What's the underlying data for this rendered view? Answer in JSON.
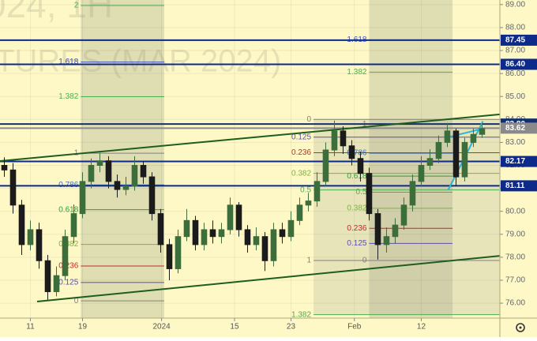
{
  "chart_data": {
    "type": "candlestick",
    "watermark": [
      "024, 1H",
      "TURES (MAR 2024)"
    ],
    "background": "#fdf8c6",
    "grid": true,
    "xlim": [
      -0.5,
      57.05
    ],
    "ylim": [
      75.35,
      89.2
    ],
    "xticks": [
      {
        "value": 3.0,
        "label": "11"
      },
      {
        "value": 9.0,
        "label": "19"
      },
      {
        "value": 18.1,
        "label": "2024"
      },
      {
        "value": 26.5,
        "label": "15"
      },
      {
        "value": 33.0,
        "label": "23"
      },
      {
        "value": 40.3,
        "label": "Feb"
      },
      {
        "value": 48.0,
        "label": "12"
      }
    ],
    "yticks": [
      {
        "value": 76,
        "label": "76.00"
      },
      {
        "value": 77,
        "label": "77.00"
      },
      {
        "value": 78,
        "label": "78.00"
      },
      {
        "value": 79,
        "label": "79.00"
      },
      {
        "value": 80,
        "label": "80.00"
      },
      {
        "value": 81,
        "label": "81.00"
      },
      {
        "value": 82,
        "label": "82.00"
      },
      {
        "value": 83,
        "label": "83.00"
      },
      {
        "value": 84,
        "label": "84.00"
      },
      {
        "value": 85,
        "label": "85.00"
      },
      {
        "value": 86,
        "label": "86.00"
      },
      {
        "value": 87,
        "label": "87.00"
      },
      {
        "value": 88,
        "label": "88.00"
      },
      {
        "value": 89,
        "label": "89.00"
      }
    ],
    "up_color": "#3c6e3c",
    "down_color": "#1b1b1b",
    "x": [
      0,
      1,
      2,
      3,
      4,
      5,
      6,
      7,
      8,
      9,
      10,
      11,
      12,
      13,
      14,
      15,
      16,
      17,
      18,
      19,
      20,
      21,
      22,
      23,
      24,
      25,
      26,
      27,
      28,
      29,
      30,
      31,
      32,
      33,
      34,
      35,
      36,
      37,
      38,
      39,
      40,
      41,
      42,
      43,
      44,
      45,
      46,
      47,
      48,
      49,
      50,
      51,
      52,
      53,
      54,
      55
    ],
    "open": [
      82.0,
      81.8,
      80.27,
      78.55,
      79.2,
      77.85,
      76.5,
      77.2,
      78.9,
      79.9,
      81.3,
      82.0,
      82.2,
      81.3,
      80.95,
      81.1,
      82.0,
      81.5,
      79.9,
      78.55,
      77.5,
      78.9,
      79.6,
      78.55,
      79.2,
      78.9,
      79.2,
      80.27,
      79.2,
      78.55,
      78.9,
      77.85,
      79.2,
      78.9,
      79.6,
      80.27,
      80.45,
      81.3,
      82.67,
      83.5,
      82.85,
      82.3,
      81.65,
      79.9,
      78.55,
      78.9,
      79.4,
      80.27,
      81.3,
      82.0,
      82.3,
      83.0,
      83.5,
      81.5,
      83.0,
      83.35
    ],
    "high": [
      82.35,
      82.1,
      80.5,
      79.6,
      79.5,
      78.1,
      77.6,
      79.2,
      80.3,
      81.7,
      82.3,
      82.55,
      82.4,
      81.6,
      81.5,
      82.4,
      82.2,
      81.7,
      80.1,
      78.8,
      79.2,
      80.1,
      79.8,
      79.5,
      79.6,
      79.5,
      80.6,
      80.4,
      79.4,
      79.3,
      79.1,
      79.5,
      79.5,
      80.0,
      80.6,
      80.8,
      81.7,
      83.0,
      83.95,
      83.7,
      83.1,
      82.6,
      81.9,
      80.1,
      79.3,
      79.7,
      80.6,
      81.6,
      82.4,
      82.7,
      83.3,
      83.85,
      83.6,
      83.2,
      83.6,
      83.85
    ],
    "low": [
      81.5,
      79.9,
      78.1,
      78.3,
      77.5,
      76.15,
      76.3,
      77.0,
      78.6,
      79.7,
      81.0,
      81.7,
      81.0,
      80.6,
      80.7,
      80.9,
      81.2,
      79.6,
      78.2,
      77.0,
      77.3,
      78.7,
      78.3,
      78.3,
      78.6,
      78.6,
      79.0,
      78.9,
      78.2,
      78.3,
      77.4,
      77.6,
      78.6,
      78.7,
      79.4,
      80.0,
      80.2,
      81.1,
      82.4,
      82.5,
      82.0,
      81.3,
      79.6,
      77.9,
      78.2,
      78.6,
      79.2,
      80.0,
      81.1,
      81.8,
      82.1,
      82.8,
      81.1,
      81.3,
      82.8,
      83.2
    ],
    "close": [
      81.8,
      80.27,
      78.55,
      79.2,
      77.85,
      76.5,
      77.2,
      78.9,
      79.9,
      81.3,
      82.0,
      82.2,
      81.3,
      80.95,
      81.1,
      82.0,
      81.5,
      79.9,
      78.55,
      77.5,
      78.9,
      79.6,
      78.55,
      79.2,
      78.9,
      79.2,
      80.27,
      79.2,
      78.55,
      78.9,
      77.85,
      79.2,
      78.9,
      79.6,
      80.27,
      80.45,
      81.3,
      82.67,
      83.5,
      82.85,
      82.3,
      81.65,
      79.9,
      78.55,
      78.9,
      79.4,
      80.27,
      81.3,
      82.0,
      82.3,
      83.0,
      83.5,
      81.5,
      83.0,
      83.35,
      83.6
    ],
    "zones": [
      {
        "x": [
          8.8,
          18.4
        ],
        "color": "rgba(120,130,110,0.22)"
      },
      {
        "x": [
          42.0,
          51.6
        ],
        "color": "rgba(120,130,110,0.22)"
      }
    ],
    "fib_sets": [
      {
        "x": [
          8.8,
          18.4
        ],
        "levels": [
          {
            "label": "2",
            "value": 88.96,
            "color": "#4caf50"
          },
          {
            "label": "1.618",
            "value": 86.5,
            "color": "#3f51b5"
          },
          {
            "label": "1.382",
            "value": 84.99,
            "color": "#4caf50"
          },
          {
            "label": "1",
            "value": 82.53,
            "color": "#808080"
          },
          {
            "label": "0.786",
            "value": 81.15,
            "color": "#3f6fb5"
          },
          {
            "label": "0.618",
            "value": 80.07,
            "color": "#2e9e3e"
          },
          {
            "label": "0.382",
            "value": 78.56,
            "color": "#7cb342"
          },
          {
            "label": "0.236",
            "value": 77.62,
            "color": "#c62828"
          },
          {
            "label": "0.125",
            "value": 76.9,
            "color": "#5c4fa8"
          },
          {
            "label": "0",
            "value": 76.1,
            "color": "#808080"
          }
        ]
      },
      {
        "x": [
          35.6,
          57.05
        ],
        "fill": "rgba(150,150,140,0.2)",
        "levels": [
          {
            "label": "0",
            "value": 84.0,
            "color": "#808080"
          },
          {
            "label": "0.125",
            "value": 83.23,
            "color": "#5c4fa8"
          },
          {
            "label": "0.236",
            "value": 82.55,
            "color": "#c62828"
          },
          {
            "label": "0.382",
            "value": 81.65,
            "color": "#7cb342"
          },
          {
            "label": "0.5",
            "value": 80.93,
            "color": "#4caf50"
          },
          {
            "label": "1",
            "value": 77.86,
            "color": "#808080"
          },
          {
            "label": "1.382",
            "value": 75.5,
            "color": "#4caf50"
          }
        ]
      },
      {
        "x": [
          42.0,
          51.6
        ],
        "levels": [
          {
            "label": "1.618",
            "value": 87.47,
            "color": "#3f51b5"
          },
          {
            "label": "1.382",
            "value": 86.06,
            "color": "#4caf50"
          },
          {
            "label": "1",
            "value": 83.8,
            "color": "#808080"
          },
          {
            "label": "0.786",
            "value": 82.53,
            "color": "#3f6fb5"
          },
          {
            "label": "0.618",
            "value": 81.53,
            "color": "#2e9e3e"
          },
          {
            "label": "0.5",
            "value": 80.83,
            "color": "#4caf50"
          },
          {
            "label": "0.382",
            "value": 80.13,
            "color": "#7cb342"
          },
          {
            "label": "0.236",
            "value": 79.26,
            "color": "#c62828"
          },
          {
            "label": "0.125",
            "value": 78.6,
            "color": "#5c4fa8"
          },
          {
            "label": "0",
            "value": 77.86,
            "color": "#808080"
          }
        ]
      }
    ],
    "hlines": [
      {
        "value": 87.45,
        "label": "87.45",
        "color": "#0d2a8a"
      },
      {
        "value": 86.4,
        "label": "86.40",
        "color": "#0d2a8a"
      },
      {
        "value": 83.8,
        "label": "83.80",
        "color": "#15306e"
      },
      {
        "value": 83.62,
        "label": "83.62",
        "color": "#8a8a8a"
      },
      {
        "value": 82.17,
        "label": "82.17",
        "color": "#0d2a8a"
      },
      {
        "value": 81.11,
        "label": "81.11",
        "color": "#0d2a8a"
      }
    ],
    "trendlines": [
      {
        "x": [
          -0.5,
          57.05
        ],
        "y": [
          82.19,
          84.22
        ],
        "color": "#1f5d1f"
      },
      {
        "x": [
          3.77,
          57.05
        ],
        "y": [
          76.07,
          78.06
        ],
        "color": "#1f5d1f"
      },
      {
        "x": [
          51.1,
          55.1
        ],
        "y": [
          80.93,
          83.92
        ],
        "color": "#29b6d8"
      },
      {
        "x": [
          50.8,
          55.1
        ],
        "y": [
          83.2,
          83.6
        ],
        "color": "#29b6d8"
      }
    ]
  }
}
